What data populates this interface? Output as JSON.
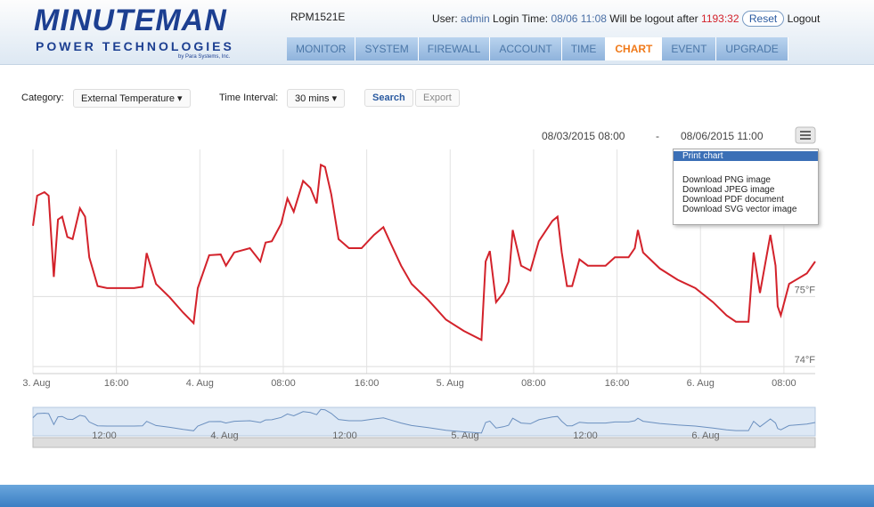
{
  "header": {
    "logo_top": "MINUTEMAN",
    "logo_bottom": "POWER TECHNOLOGIES",
    "logo_sub": "by Para Systems, Inc.",
    "device": "RPM1521E",
    "user_label": "User:",
    "user": "admin",
    "login_label": "Login Time:",
    "login_time": "08/06 11:08",
    "logout_label": "Will be logout after",
    "countdown": "1193:32",
    "reset": "Reset",
    "logout": "Logout"
  },
  "nav": {
    "items": [
      "MONITOR",
      "SYSTEM",
      "FIREWALL",
      "ACCOUNT",
      "TIME",
      "CHART",
      "EVENT",
      "UPGRADE"
    ],
    "active": 5
  },
  "controls": {
    "category_label": "Category:",
    "category": "External Temperature",
    "interval_label": "Time Interval:",
    "interval": "30 mins",
    "search": "Search",
    "export": "Export",
    "range_from": "08/03/2015 08:00",
    "range_sep": "-",
    "range_to": "08/06/2015 11:00"
  },
  "menu": {
    "items": [
      "Print chart",
      "Download PNG image",
      "Download JPEG image",
      "Download PDF document",
      "Download SVG vector image"
    ]
  },
  "navigator": {
    "labels": [
      "12:00",
      "4. Aug",
      "12:00",
      "5. Aug",
      "12:00",
      "6. Aug"
    ]
  },
  "chart_data": {
    "type": "line",
    "x": [
      0.0,
      0.4,
      1.1,
      1.5,
      2.0,
      2.4,
      2.8,
      3.3,
      3.8,
      4.5,
      5.0,
      5.4,
      6.2,
      7.1,
      9.7,
      10.5,
      10.9,
      11.8,
      13.1,
      14.4,
      15.4,
      15.8,
      16.9,
      18.0,
      18.5,
      19.3,
      20.8,
      21.8,
      22.3,
      22.9,
      23.8,
      24.4,
      25.0,
      25.9,
      26.6,
      27.2,
      27.6,
      28.0,
      28.6,
      29.3,
      30.3,
      31.5,
      32.7,
      33.6,
      34.3,
      35.3,
      36.3,
      37.9,
      39.6,
      41.3,
      43.0,
      43.4,
      43.8,
      44.4,
      45.1,
      45.6,
      46.0,
      46.8,
      47.7,
      48.5,
      49.8,
      50.3,
      50.7,
      51.2,
      51.7,
      52.4,
      53.2,
      54.9,
      55.8,
      57.1,
      57.7,
      58.0,
      58.5,
      60.1,
      61.8,
      63.5,
      65.2,
      66.5,
      67.4,
      68.6,
      69.1,
      69.7,
      70.7,
      71.2,
      71.4,
      71.7,
      72.5,
      74.2,
      75.0
    ],
    "series": [
      {
        "color": "#d3222b",
        "values": [
          76.01,
          76.44,
          76.49,
          76.44,
          75.28,
          76.1,
          76.14,
          75.85,
          75.82,
          76.26,
          76.14,
          75.56,
          75.15,
          75.12,
          75.12,
          75.14,
          75.62,
          75.18,
          74.99,
          74.77,
          74.62,
          75.12,
          75.59,
          75.6,
          75.44,
          75.63,
          75.69,
          75.5,
          75.77,
          75.79,
          76.04,
          76.4,
          76.21,
          76.65,
          76.55,
          76.33,
          76.88,
          76.85,
          76.46,
          75.82,
          75.69,
          75.69,
          75.88,
          75.99,
          75.76,
          75.44,
          75.18,
          74.95,
          74.67,
          74.51,
          74.38,
          75.5,
          75.65,
          74.92,
          75.05,
          75.21,
          75.95,
          75.44,
          75.37,
          75.79,
          76.08,
          76.14,
          75.63,
          75.15,
          75.15,
          75.53,
          75.44,
          75.44,
          75.56,
          75.56,
          75.69,
          75.95,
          75.63,
          75.4,
          75.24,
          75.12,
          74.92,
          74.73,
          74.64,
          74.64,
          75.63,
          75.05,
          75.88,
          75.44,
          74.86,
          74.73,
          75.18,
          75.33,
          75.5
        ]
      }
    ],
    "xlim": [
      0,
      75
    ],
    "xticks": [
      {
        "value": 0,
        "label": "3. Aug"
      },
      {
        "value": 8,
        "label": "16:00"
      },
      {
        "value": 16,
        "label": "4. Aug"
      },
      {
        "value": 24,
        "label": "08:00"
      },
      {
        "value": 32,
        "label": "16:00"
      },
      {
        "value": 40,
        "label": "5. Aug"
      },
      {
        "value": 48,
        "label": "08:00"
      },
      {
        "value": 56,
        "label": "16:00"
      },
      {
        "value": 64,
        "label": "6. Aug"
      },
      {
        "value": 72,
        "label": "08:00"
      }
    ],
    "ylim": [
      73.9,
      77.1
    ],
    "yticks": [
      {
        "value": 74,
        "label": "74°F"
      },
      {
        "value": 75,
        "label": "75°F"
      }
    ],
    "grid": true
  }
}
